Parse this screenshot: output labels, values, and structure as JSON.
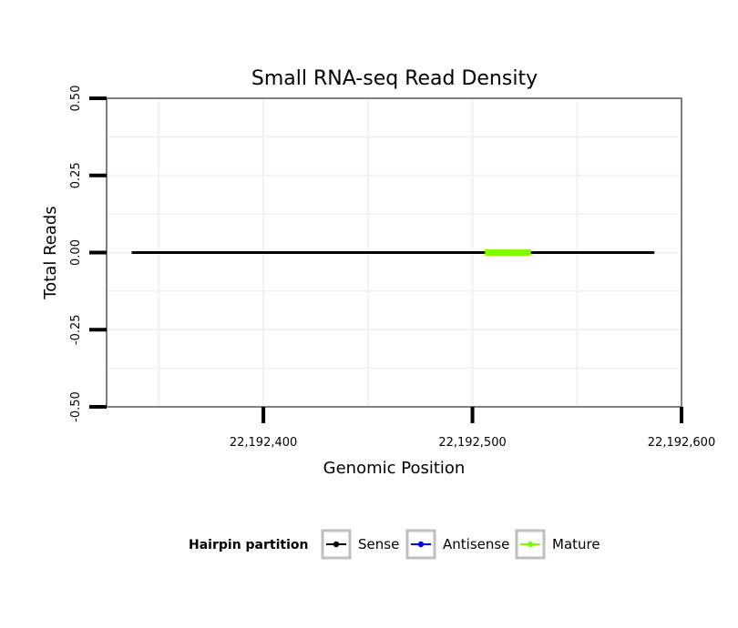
{
  "chart_data": {
    "type": "line",
    "title": "Small RNA-seq Read Density",
    "xlabel": "Genomic Position",
    "ylabel": "Total Reads",
    "xlim": [
      22192325,
      22192600
    ],
    "ylim": [
      -0.5,
      0.5
    ],
    "x_ticks": [
      22192400,
      22192500,
      22192600
    ],
    "x_tick_labels": [
      "22,192,400",
      "22,192,500",
      "22,192,600"
    ],
    "y_ticks": [
      -0.5,
      -0.25,
      0,
      0.25,
      0.5
    ],
    "y_tick_labels": [
      "-0.50",
      "-0.25",
      "0.00",
      "0.25",
      "0.50"
    ],
    "grid": true,
    "legend_position": "bottom",
    "legend_title": "Hairpin partition",
    "series": [
      {
        "name": "Sense",
        "color": "#000000",
        "x": [
          22192337,
          22192587
        ],
        "y": [
          0,
          0
        ]
      },
      {
        "name": "Antisense",
        "color": "#0000ff",
        "x": [
          22192337,
          22192587
        ],
        "y": [
          0,
          0
        ]
      },
      {
        "name": "Mature",
        "color": "#7fff00",
        "x": [
          22192506,
          22192528
        ],
        "y": [
          0,
          0
        ]
      }
    ]
  }
}
